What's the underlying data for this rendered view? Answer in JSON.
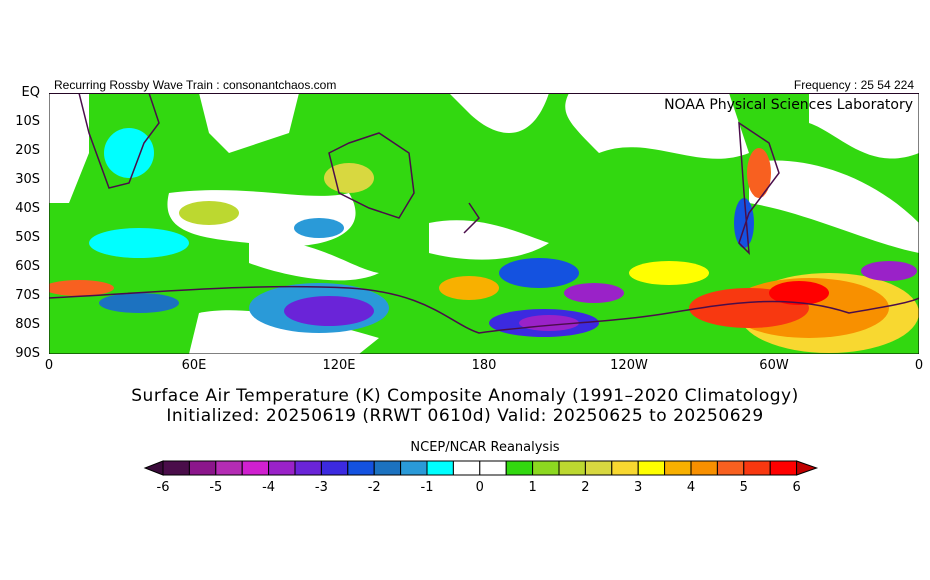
{
  "header": {
    "left": "Recurring Rossby Wave Train : consonantchaos.com",
    "right": "Frequency : 25 54 224",
    "lab": "NOAA Physical Sciences Laboratory"
  },
  "lat_labels": [
    "EQ",
    "10S",
    "20S",
    "30S",
    "40S",
    "50S",
    "60S",
    "70S",
    "80S",
    "90S"
  ],
  "lon_labels": [
    "0",
    "60E",
    "120E",
    "180",
    "120W",
    "60W",
    "0"
  ],
  "title": {
    "line1": "Surface Air Temperature (K) Composite Anomaly (1991–2020 Climatology)",
    "line2": "Initialized: 20250619 (RRWT 0610d) Valid: 20250625 to 20250629"
  },
  "colorbar": {
    "source": "NCEP/NCAR Reanalysis",
    "unit": "K",
    "range": [
      -6,
      6
    ],
    "step": 0.5,
    "tick_labels": [
      "-6",
      "-5",
      "-4",
      "-3",
      "-2",
      "-1",
      "0",
      "1",
      "2",
      "3",
      "4",
      "5",
      "6"
    ],
    "colors": [
      "#4a0d4a",
      "#8b168b",
      "#b42cb4",
      "#d020d0",
      "#9a22c8",
      "#6a24d8",
      "#3c2ae0",
      "#1452e0",
      "#1c72c0",
      "#2a9ad8",
      "#00ffff",
      "#ffffff",
      "#ffffff",
      "#32d810",
      "#8cd820",
      "#bcd830",
      "#d8d840",
      "#f8d830",
      "#ffff00",
      "#f8b000",
      "#f89000",
      "#f86020",
      "#f83810",
      "#ff0000"
    ],
    "under_color": "#3a0a3a",
    "over_color": "#c00000"
  }
}
